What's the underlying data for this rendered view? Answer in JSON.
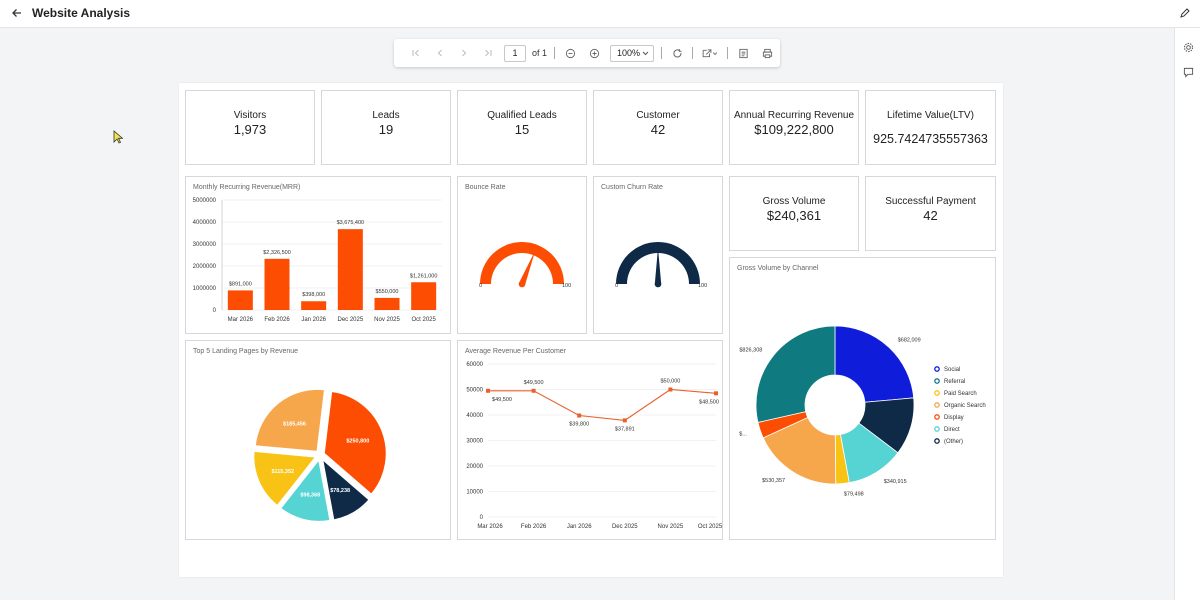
{
  "header": {
    "title": "Website Analysis",
    "back_icon": "arrow-left-icon",
    "edit_icon": "pencil-icon"
  },
  "right_sidebar": {
    "icons": [
      "gear-icon",
      "comment-icon"
    ]
  },
  "toolbar": {
    "page_number": "1",
    "page_of": "of 1",
    "zoom": "100%"
  },
  "kpis": {
    "visitors": {
      "label": "Visitors",
      "value": "1,973"
    },
    "leads": {
      "label": "Leads",
      "value": "19"
    },
    "qualified_leads": {
      "label": "Qualified Leads",
      "value": "15"
    },
    "customer": {
      "label": "Customer",
      "value": "42"
    },
    "arr": {
      "label": "Annual Recurring Revenue",
      "value": "$109,222,800"
    },
    "ltv": {
      "label": "Lifetime Value(LTV)",
      "value": "925.7424735557363"
    },
    "gross_volume": {
      "label": "Gross Volume",
      "value": "$240,361"
    },
    "successful_payment": {
      "label": "Successful Payment",
      "value": "42"
    }
  },
  "panels": {
    "mrr_title": "Monthly Recurring Revenue(MRR)",
    "bounce_title": "Bounce Rate",
    "churn_title": "Custom Churn Rate",
    "landing_title": "Top 5 Landing Pages by Revenue",
    "arpc_title": "Average Revenue Per Customer",
    "channel_title": "Gross Volume by Channel"
  },
  "colors": {
    "orange": "#fd4d02",
    "navy": "#0e2a47",
    "teal": "#0f7b80",
    "blue": "#0f1cd9",
    "light_orange": "#f7a74b",
    "yellow": "#f8c315",
    "turquoise": "#56d3d3"
  },
  "chart_data": [
    {
      "type": "bar",
      "categories": [
        "Mar 2026",
        "Feb 2026",
        "Jan 2026",
        "Dec 2025",
        "Nov 2025",
        "Oct 2025"
      ],
      "values": [
        891000,
        2326500,
        398000,
        3675400,
        550000,
        1261000
      ],
      "data_labels": [
        "$891,000",
        "$2,326,500",
        "$398,000",
        "$3,675,400",
        "$550,000",
        "$1,261,000"
      ],
      "ylim": [
        0,
        5000000
      ],
      "yticks": [
        "0",
        "1000000",
        "2000000",
        "3000000",
        "4000000",
        "5000000"
      ],
      "grid": true
    },
    {
      "type": "gauge",
      "min_label": "0",
      "max_label": "100",
      "min": 0,
      "max": 100,
      "value": 62,
      "color": "#fd4d02"
    },
    {
      "type": "gauge",
      "min_label": "0",
      "max_label": "100",
      "min": 0,
      "max": 100,
      "value": 50,
      "color": "#0e2a47"
    },
    {
      "type": "pie",
      "exploded": true,
      "values": [
        250800,
        78238,
        98368,
        115352,
        185456
      ],
      "labels": [
        "$250,800",
        "$78,238",
        "$98,368",
        "$115,352",
        "$185,456"
      ],
      "colors": [
        "#fd4d02",
        "#0e2a47",
        "#56d3d3",
        "#f8c315",
        "#f7a74b"
      ]
    },
    {
      "type": "line",
      "categories": [
        "Mar 2026",
        "Feb 2026",
        "Jan 2026",
        "Dec 2025",
        "Nov 2025",
        "Oct 2025"
      ],
      "values": [
        49500,
        49500,
        39800,
        37891,
        50000,
        48500
      ],
      "data_labels": [
        "$49,500",
        "$49,500",
        "$39,800",
        "$37,891",
        "$50,000",
        "$48,500"
      ],
      "ylim": [
        0,
        60000
      ],
      "yticks": [
        "0",
        "10000",
        "20000",
        "30000",
        "40000",
        "50000",
        "60000"
      ],
      "grid": true,
      "color": "#e8612c"
    },
    {
      "type": "pie",
      "donut": true,
      "series": [
        {
          "name": "Social",
          "value": 682009,
          "color": "#0f1cd9",
          "label": "$682,009"
        },
        {
          "name": "(Other)",
          "value": 340915,
          "color": "#0e2a47",
          "label": ""
        },
        {
          "name": "Direct",
          "value": 340915,
          "color": "#56d3d3",
          "label": "$340,915"
        },
        {
          "name": "Paid Search",
          "value": 79498,
          "color": "#f8c315",
          "label": "$79,498"
        },
        {
          "name": "Organic Search",
          "value": 530357,
          "color": "#f7a74b",
          "label": "$530,357"
        },
        {
          "name": "Display",
          "value": 95000,
          "color": "#fd4d02",
          "label": "$..."
        },
        {
          "name": "Referral",
          "value": 826308,
          "color": "#0f7b80",
          "label": "$826,308"
        }
      ],
      "legend": [
        "Social",
        "Referral",
        "Paid Search",
        "Organic Search",
        "Display",
        "Direct",
        "(Other)"
      ],
      "legend_position": "right"
    }
  ]
}
